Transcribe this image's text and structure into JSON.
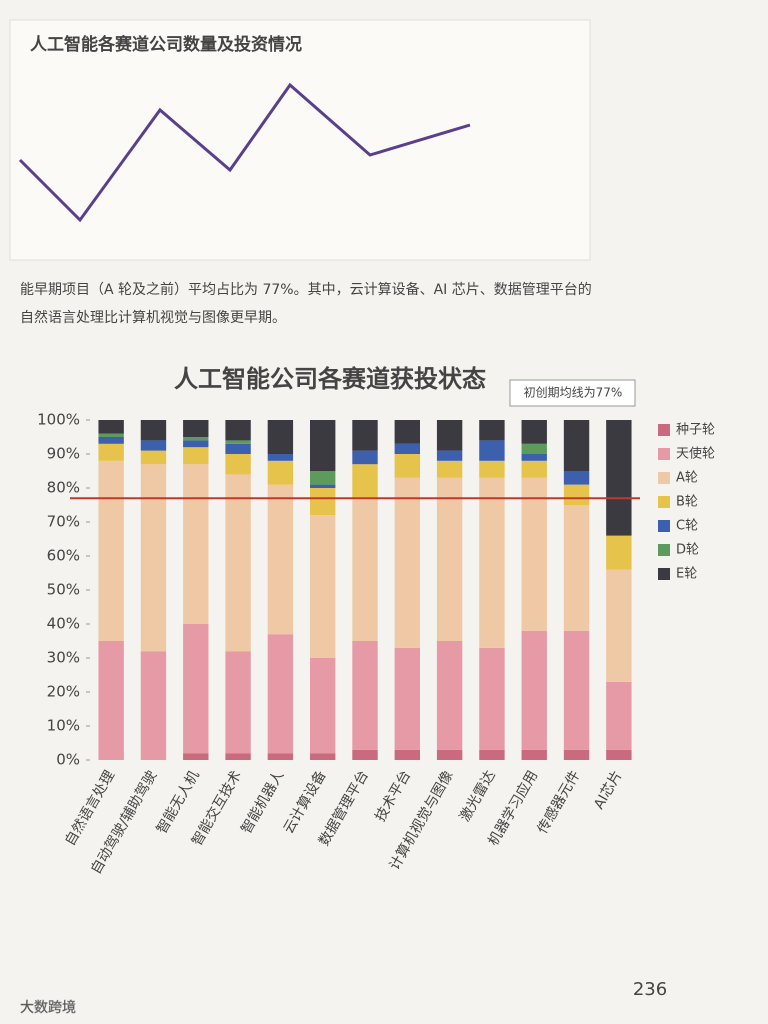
{
  "header": {
    "top_chart_title": "人工智能各赛道公司数量及投资情况"
  },
  "text": [
    "能早期项目（A 轮及之前）平均占比为 77%。其中，云计算设备、AI 芯片、数据管理平台的",
    "自然语言处理比计算机视觉与图像更早期。"
  ],
  "chart_data": {
    "type": "stacked_bar",
    "title": "人工智能公司各赛道获投状态",
    "categories": [
      "自然语言处理",
      "自动驾驶/辅助驾驶",
      "智能无人机",
      "智能交互技术",
      "智能机器人",
      "云计算设备",
      "数据管理平台",
      "技术平台",
      "计算机视觉与图像",
      "激光雷达",
      "机器学习应用",
      "传感器元件",
      "AI芯片"
    ],
    "series": [
      {
        "name": "种子轮",
        "color": "#c96a7e",
        "values": [
          0,
          0,
          2,
          2,
          2,
          2,
          3,
          3,
          3,
          3,
          3,
          3,
          3
        ]
      },
      {
        "name": "天使轮",
        "color": "#e59aa6",
        "values": [
          35,
          32,
          38,
          30,
          35,
          28,
          32,
          30,
          32,
          30,
          35,
          35,
          20
        ]
      },
      {
        "name": "A轮",
        "color": "#efc9a6",
        "values": [
          53,
          55,
          47,
          52,
          44,
          42,
          42,
          50,
          48,
          50,
          45,
          37,
          33
        ]
      },
      {
        "name": "B轮",
        "color": "#e6c34a",
        "values": [
          5,
          4,
          5,
          6,
          7,
          8,
          10,
          7,
          5,
          5,
          5,
          6,
          10
        ]
      },
      {
        "name": "C轮",
        "color": "#3c5fae",
        "values": [
          2,
          3,
          2,
          3,
          2,
          1,
          4,
          3,
          3,
          6,
          2,
          4,
          0
        ]
      },
      {
        "name": "D轮",
        "color": "#5c9b5c",
        "values": [
          1,
          0,
          1,
          1,
          0,
          4,
          0,
          0,
          0,
          0,
          3,
          0,
          0
        ]
      },
      {
        "name": "E轮",
        "color": "#3a3a40",
        "values": [
          4,
          6,
          5,
          6,
          10,
          15,
          9,
          7,
          9,
          6,
          7,
          15,
          34
        ]
      }
    ],
    "ylim": [
      0,
      100
    ],
    "yticks": [
      {
        "value": 0,
        "label": "0%"
      },
      {
        "value": 10,
        "label": "10%"
      },
      {
        "value": 20,
        "label": "20%"
      },
      {
        "value": 30,
        "label": "30%"
      },
      {
        "value": 40,
        "label": "40%"
      },
      {
        "value": 50,
        "label": "50%"
      },
      {
        "value": 60,
        "label": "60%"
      },
      {
        "value": 70,
        "label": "70%"
      },
      {
        "value": 80,
        "label": "80%"
      },
      {
        "value": 90,
        "label": "90%"
      },
      {
        "value": 100,
        "label": "100%"
      }
    ],
    "reference_line": {
      "value": 77,
      "label": "初创期均线为77%",
      "color": "#c0392b"
    },
    "legend": "right"
  },
  "page_number": "236",
  "watermark": "大数跨境"
}
